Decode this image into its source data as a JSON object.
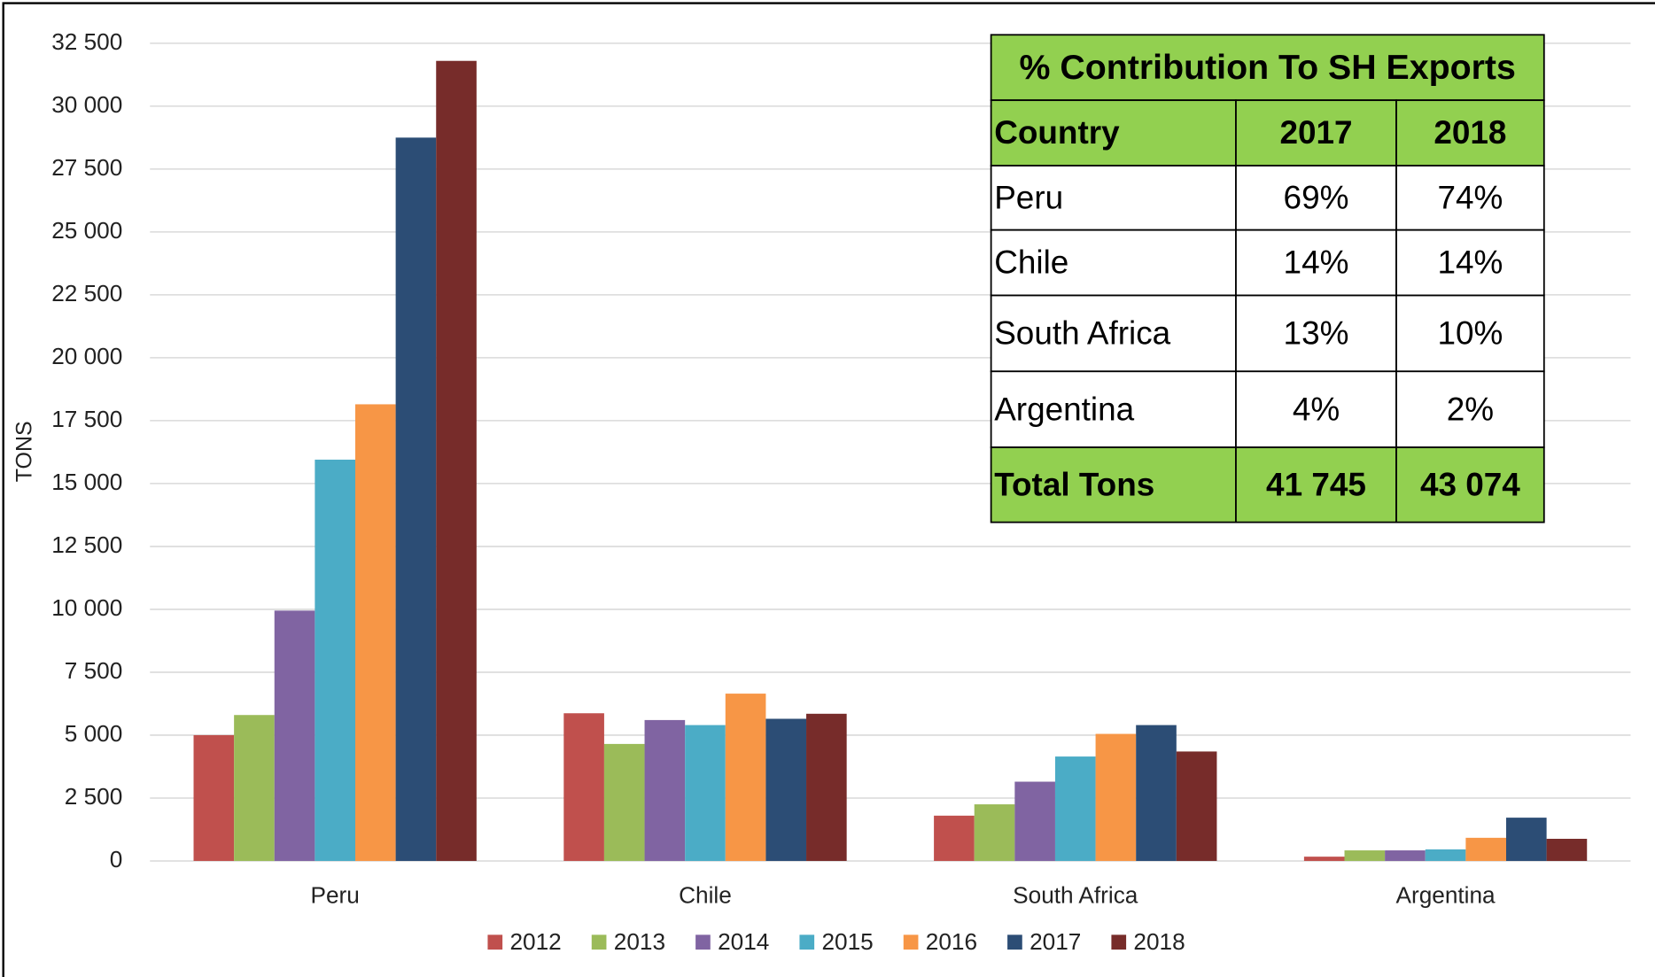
{
  "chart_data": {
    "type": "bar",
    "y_label": "TONS",
    "categories": [
      "Peru",
      "Chile",
      "South Africa",
      "Argentina"
    ],
    "series": [
      {
        "name": "2012",
        "color": "#c0504d",
        "values": [
          5000,
          5870,
          1800,
          170
        ]
      },
      {
        "name": "2013",
        "color": "#9bbb59",
        "values": [
          5800,
          4650,
          2250,
          420
        ]
      },
      {
        "name": "2014",
        "color": "#8064a2",
        "values": [
          9950,
          5600,
          3150,
          420
        ]
      },
      {
        "name": "2015",
        "color": "#4bacc6",
        "values": [
          15950,
          5400,
          4150,
          460
        ]
      },
      {
        "name": "2016",
        "color": "#f79646",
        "values": [
          18150,
          6650,
          5050,
          920
        ]
      },
      {
        "name": "2017",
        "color": "#2c4d75",
        "values": [
          28750,
          5650,
          5400,
          1720
        ]
      },
      {
        "name": "2018",
        "color": "#772c2a",
        "values": [
          31800,
          5850,
          4350,
          880
        ]
      }
    ],
    "ylim": [
      0,
      32500
    ],
    "yticks": [
      0,
      {
        "value": 2500,
        "label": "2 500"
      },
      {
        "value": 5000,
        "label": "5 000"
      },
      {
        "value": 7500,
        "label": "7 500"
      },
      {
        "value": 10000,
        "label": "10 000"
      },
      {
        "value": 12500,
        "label": "12 500"
      },
      {
        "value": 15000,
        "label": "15 000"
      },
      {
        "value": 17500,
        "label": "17 500"
      },
      {
        "value": 20000,
        "label": "20 000"
      },
      {
        "value": 22500,
        "label": "22 500"
      },
      {
        "value": 25000,
        "label": "25 000"
      },
      {
        "value": 27500,
        "label": "27 500"
      },
      {
        "value": 30000,
        "label": "30 000"
      },
      {
        "value": 32500,
        "label": "32 500"
      }
    ],
    "grid": true,
    "legend": "bottom"
  },
  "table": {
    "title": "% Contribution To  SH Exports",
    "header": [
      "Country",
      "2017",
      "2018"
    ],
    "rows": [
      [
        "Peru",
        "69%",
        "74%"
      ],
      [
        "Chile",
        "14%",
        "14%"
      ],
      [
        "South Africa",
        "13%",
        "10%"
      ],
      [
        "Argentina",
        "4%",
        "2%"
      ]
    ],
    "footer": [
      "Total Tons",
      "41 745",
      "43 074"
    ]
  }
}
